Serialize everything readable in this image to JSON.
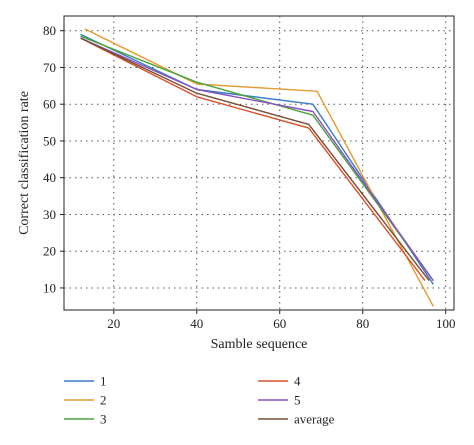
{
  "chart_data": {
    "type": "line",
    "xlabel": "Samble sequence",
    "ylabel": "Correct classification rate",
    "xlim": [
      8,
      102
    ],
    "ylim": [
      4,
      84
    ],
    "xticks": [
      20,
      40,
      60,
      80,
      100
    ],
    "yticks": [
      10,
      20,
      30,
      40,
      50,
      60,
      70,
      80
    ],
    "grid": true,
    "legend_position": "bottom",
    "series": [
      {
        "name": "1",
        "color": "#3b7dc4",
        "x": [
          12,
          40,
          68,
          97
        ],
        "y": [
          79,
          64,
          60,
          11
        ]
      },
      {
        "name": "2",
        "color": "#e69a2e",
        "x": [
          13,
          40,
          69,
          97
        ],
        "y": [
          80.5,
          65.5,
          63.5,
          5
        ]
      },
      {
        "name": "3",
        "color": "#4aa33c",
        "x": [
          12,
          40,
          68,
          97
        ],
        "y": [
          78.5,
          66,
          57,
          12
        ]
      },
      {
        "name": "4",
        "color": "#d9522b",
        "x": [
          12,
          40,
          67,
          95
        ],
        "y": [
          78,
          62,
          53.5,
          12
        ]
      },
      {
        "name": "5",
        "color": "#8b4fc4",
        "x": [
          12,
          40,
          68,
          97
        ],
        "y": [
          78,
          64,
          58,
          12
        ]
      },
      {
        "name": "average",
        "color": "#7a4e35",
        "x": [
          12,
          40,
          67,
          96
        ],
        "y": [
          78,
          63,
          54.5,
          12
        ]
      }
    ]
  }
}
